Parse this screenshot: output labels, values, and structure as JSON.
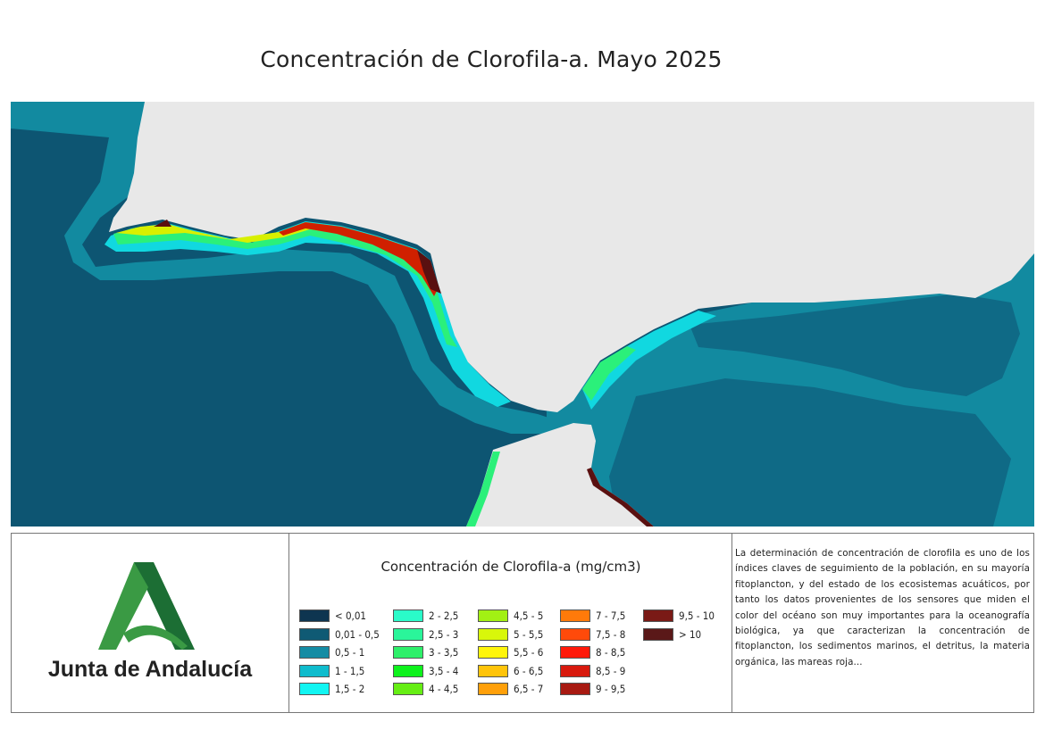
{
  "title": "Concentración de Clorofila-a. Mayo 2025",
  "colors": {
    "land": "#e8e8e8",
    "deep_ocean": "#0d5572",
    "ocean": "#128aa0",
    "shelf": "#10b6cc",
    "coast_cyan": "#11f0f0",
    "coast_green": "#2bf07a",
    "coast_yellow": "#d8f000",
    "coast_red": "#d02000",
    "coast_dark": "#5a1010",
    "logo_green": "#3a8a3e"
  },
  "legend": {
    "title": "Concentración de Clorofila-a (mg/cm3)",
    "items": [
      {
        "label": "< 0,01",
        "color": "#0e3550"
      },
      {
        "label": "0,01 - 0,5",
        "color": "#0f5a74"
      },
      {
        "label": "0,5 - 1",
        "color": "#148ca4"
      },
      {
        "label": "1 - 1,5",
        "color": "#0fbccd"
      },
      {
        "label": "1,5 - 2",
        "color": "#12f5f2"
      },
      {
        "label": "2 - 2,5",
        "color": "#2afbc9"
      },
      {
        "label": "2,5 - 3",
        "color": "#2af59a"
      },
      {
        "label": "3 - 3,5",
        "color": "#2ef06a"
      },
      {
        "label": "3,5 - 4",
        "color": "#0ef21c"
      },
      {
        "label": "4 - 4,5",
        "color": "#66ee14"
      },
      {
        "label": "4,5 - 5",
        "color": "#a2f014"
      },
      {
        "label": "5 - 5,5",
        "color": "#d8f70a"
      },
      {
        "label": "5,5 - 6",
        "color": "#fff50a"
      },
      {
        "label": "6 - 6,5",
        "color": "#ffc40a"
      },
      {
        "label": "6,5 - 7",
        "color": "#ffa00a"
      },
      {
        "label": "7 - 7,5",
        "color": "#ff7a0a"
      },
      {
        "label": "7,5 - 8",
        "color": "#ff4a0a"
      },
      {
        "label": "8 - 8,5",
        "color": "#ff1a0a"
      },
      {
        "label": "8,5 - 9",
        "color": "#d81a0e"
      },
      {
        "label": "9 - 9,5",
        "color": "#a81a12"
      },
      {
        "label": "9,5 - 10",
        "color": "#7a1a16"
      },
      {
        "label": "> 10",
        "color": "#5a1818"
      }
    ]
  },
  "logo": {
    "text": "Junta de Andalucía"
  },
  "description": "La determinación de concentración de clorofila es uno de los índices claves de seguimiento de la población, en su mayoría fitoplancton, y del estado de los ecosistemas acuáticos, por tanto los datos provenientes de los sensores que miden el color del océano son muy importantes para la oceanografía biológica, ya que caracterizan la concentración de fitoplancton, los sedimentos marinos, el detritus, la materia orgánica, las mareas roja..."
}
